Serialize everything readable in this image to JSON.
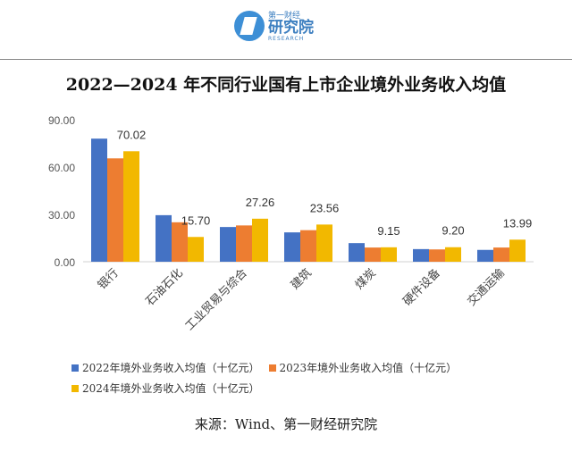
{
  "logo": {
    "line1": "第一财经",
    "line2": "研究院",
    "line3": "RESEARCH"
  },
  "chart_data": {
    "type": "bar",
    "title": "2022—2024 年不同行业国有上市企业境外业务收入均值",
    "categories": [
      "银行",
      "石油石化",
      "工业贸易与综合",
      "建筑",
      "煤炭",
      "硬件设备",
      "交通运输"
    ],
    "series": [
      {
        "name": "2022年境外业务收入均值（十亿元）",
        "color": "#4472c4",
        "values": [
          78,
          29.5,
          22,
          18.6,
          11.8,
          8,
          7.5
        ]
      },
      {
        "name": "2023年境外业务收入均值（十亿元）",
        "color": "#ed7d31",
        "values": [
          65.5,
          25,
          23,
          20,
          9,
          7.8,
          9
        ]
      },
      {
        "name": "2024年境外业务收入均值（十亿元）",
        "color": "#f2b800",
        "values": [
          70.02,
          15.7,
          27.26,
          23.56,
          9.15,
          9.2,
          13.99
        ]
      }
    ],
    "data_labels": [
      "70.02",
      "15.70",
      "27.26",
      "23.56",
      "9.15",
      "9.20",
      "13.99"
    ],
    "yticks": [
      "0.00",
      "30.00",
      "60.00",
      "90.00"
    ],
    "ylim": [
      0,
      90
    ],
    "grid": false,
    "legend": "bottom"
  },
  "source": "来源：Wind、第一财经研究院"
}
